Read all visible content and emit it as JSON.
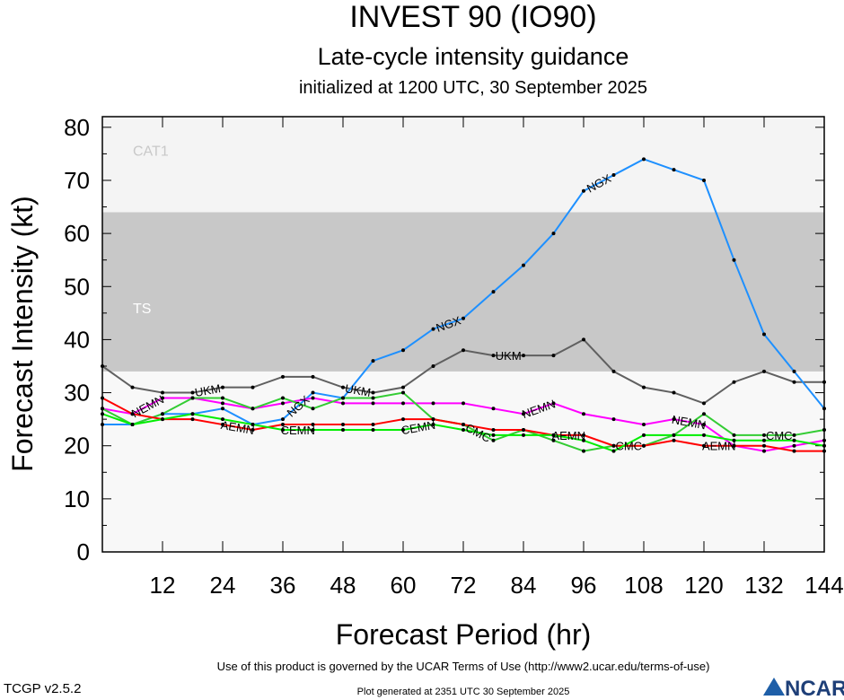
{
  "chart_data": {
    "type": "line",
    "title": "INVEST 90 (IO90)",
    "subtitle": "Late-cycle intensity guidance",
    "subtitle2": "initialized at 1200 UTC, 30 September 2025",
    "xlabel": "Forecast Period (hr)",
    "ylabel": "Forecast Intensity (kt)",
    "xlim": [
      0,
      144
    ],
    "ylim": [
      0,
      82
    ],
    "xticks": [
      12,
      24,
      36,
      48,
      60,
      72,
      84,
      96,
      108,
      120,
      132,
      144
    ],
    "yticks": [
      0,
      10,
      20,
      30,
      40,
      50,
      60,
      70,
      80
    ],
    "bands": [
      {
        "label": "TS",
        "from": 34,
        "to": 64,
        "color": "#c8c8c8"
      },
      {
        "label": "CAT1",
        "from": 64,
        "to": 82,
        "color": "#f4f4f4"
      }
    ],
    "x": [
      0,
      6,
      12,
      18,
      24,
      30,
      36,
      42,
      48,
      54,
      60,
      66,
      72,
      78,
      84,
      90,
      96,
      102,
      108,
      114,
      120,
      126,
      132,
      138,
      144
    ],
    "series": [
      {
        "name": "UKM",
        "color": "#606060",
        "values": [
          35,
          31,
          30,
          30,
          31,
          31,
          33,
          33,
          31,
          30,
          31,
          35,
          38,
          37,
          37,
          37,
          40,
          34,
          31,
          30,
          28,
          32,
          34,
          32,
          32
        ]
      },
      {
        "name": "NGX",
        "color": "#1e90ff",
        "values": [
          24,
          24,
          26,
          26,
          27,
          24,
          25,
          30,
          29,
          36,
          38,
          42,
          44,
          49,
          54,
          60,
          68,
          71,
          74,
          72,
          70,
          55,
          41,
          34,
          27
        ]
      },
      {
        "name": "NEMN",
        "color": "#ff00ff",
        "values": [
          27,
          26,
          29,
          29,
          28,
          27,
          28,
          29,
          28,
          28,
          28,
          28,
          28,
          27,
          26,
          28,
          26,
          25,
          24,
          25,
          24,
          20,
          19,
          20,
          21
        ]
      },
      {
        "name": "CMC",
        "color": "#33cc33",
        "values": [
          27,
          24,
          26,
          29,
          29,
          27,
          29,
          27,
          29,
          29,
          30,
          25,
          24,
          21,
          23,
          21,
          19,
          20,
          20,
          22,
          26,
          22,
          22,
          22,
          23
        ]
      },
      {
        "name": "AEMN",
        "color": "#ff0000",
        "values": [
          29,
          26,
          25,
          25,
          24,
          23,
          24,
          24,
          24,
          24,
          25,
          25,
          24,
          23,
          23,
          22,
          22,
          20,
          20,
          21,
          20,
          20,
          20,
          19,
          19
        ]
      },
      {
        "name": "CEMN",
        "color": "#00ee00",
        "values": [
          26,
          24,
          25,
          26,
          25,
          24,
          23,
          23,
          23,
          23,
          23,
          24,
          23,
          22,
          22,
          22,
          21,
          19,
          22,
          22,
          22,
          21,
          21,
          21,
          20
        ]
      }
    ]
  },
  "footer": {
    "terms": "Use of this product is governed by the UCAR Terms of Use (http://www2.ucar.edu/terms-of-use)",
    "version": "TCGP v2.5.2",
    "generated": "Plot generated at 2351 UTC   30 September 2025",
    "logo": "NCAR"
  }
}
